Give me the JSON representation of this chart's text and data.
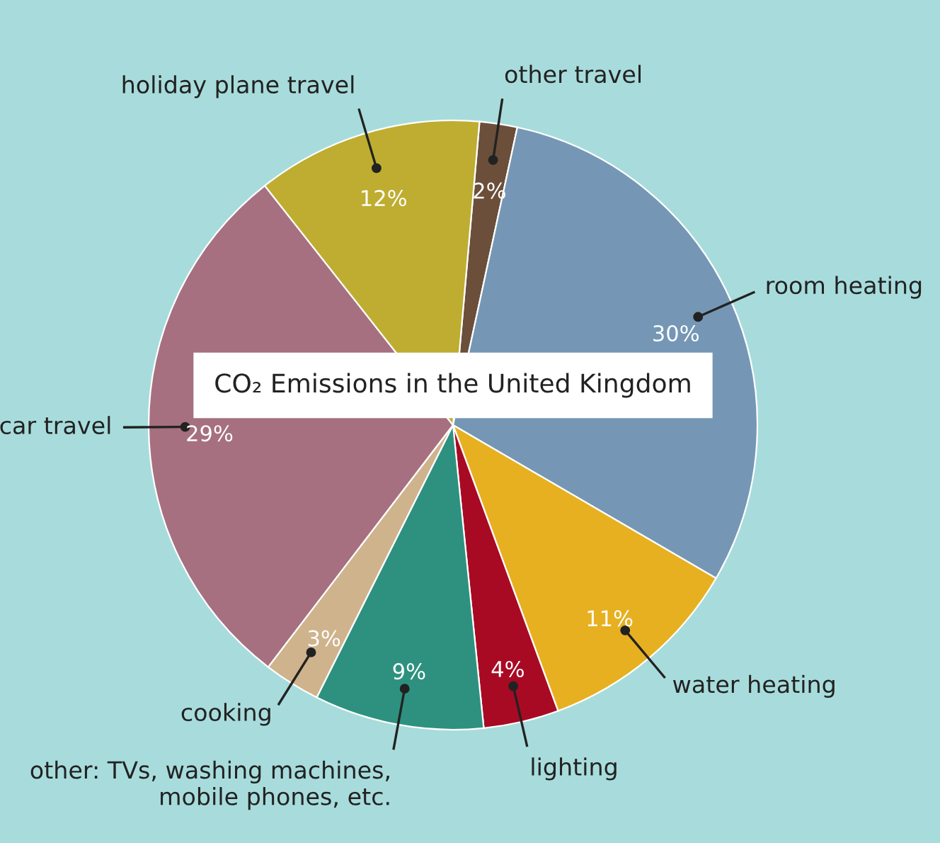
{
  "chart_data": {
    "type": "pie",
    "title": "CO₂ Emissions in the United Kingdom",
    "categories": [
      "other travel",
      "room heating",
      "water heating",
      "lighting",
      "other: TVs, washing machines,\nmobile phones, etc.",
      "cooking",
      "car travel",
      "holiday plane travel"
    ],
    "values": [
      2,
      30,
      11,
      4,
      9,
      3,
      29,
      12
    ],
    "value_labels": [
      "2%",
      "30%",
      "11%",
      "4%",
      "9%",
      "3%",
      "29%",
      "12%"
    ],
    "colors": [
      "#6b4f3a",
      "#7597b5",
      "#e6b020",
      "#a80a24",
      "#2e9180",
      "#cfb38c",
      "#a67080",
      "#bead30"
    ],
    "legend": false
  }
}
